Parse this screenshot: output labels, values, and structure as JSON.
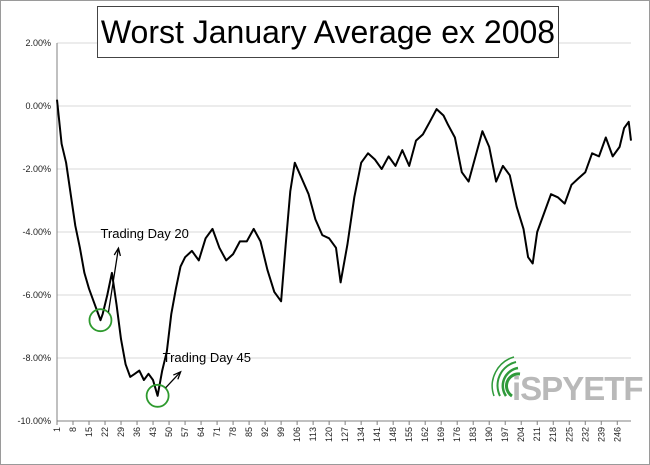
{
  "colors": {
    "line": "#000000",
    "circle": "#2e9a2e",
    "gridline": "#d9d9d9",
    "axis": "#808080",
    "logo_green": "#2f9a3a",
    "logo_grey": "#b9b9b9"
  },
  "logo": {
    "text": "iSPYETF",
    "icon": "radiating-arcs-icon"
  },
  "chart_data": {
    "type": "line",
    "title": "Worst January Average ex 2008",
    "xlabel": "",
    "ylabel": "",
    "xlim": [
      1,
      252
    ],
    "ylim": [
      -10,
      2
    ],
    "ytick_labels": [
      "2.00%",
      "0.00%",
      "-2.00%",
      "-4.00%",
      "-6.00%",
      "-8.00%",
      "-10.00%"
    ],
    "ytick_values": [
      2,
      0,
      -2,
      -4,
      -6,
      -8,
      -10
    ],
    "xtick_labels": [
      "1",
      "8",
      "15",
      "22",
      "29",
      "36",
      "43",
      "50",
      "57",
      "64",
      "71",
      "78",
      "85",
      "92",
      "99",
      "106",
      "113",
      "120",
      "127",
      "134",
      "141",
      "148",
      "155",
      "162",
      "169",
      "176",
      "183",
      "190",
      "197",
      "204",
      "211",
      "218",
      "225",
      "232",
      "239",
      "246"
    ],
    "grid": "horizontal",
    "legend": "none",
    "series": [
      {
        "x": [
          1,
          3,
          5,
          7,
          9,
          11,
          13,
          15,
          17,
          19,
          20,
          21,
          23,
          25,
          27,
          29,
          31,
          33,
          35,
          37,
          39,
          41,
          43,
          45,
          47,
          49,
          51,
          53,
          55,
          57,
          60,
          63,
          66,
          69,
          72,
          75,
          78,
          81,
          84,
          87,
          90,
          93,
          96,
          99,
          101,
          103,
          105,
          108,
          111,
          114,
          117,
          120,
          123,
          125,
          128,
          131,
          134,
          137,
          140,
          143,
          146,
          149,
          152,
          155,
          158,
          161,
          164,
          167,
          170,
          172,
          175,
          178,
          181,
          184,
          187,
          190,
          193,
          196,
          199,
          202,
          205,
          207,
          209,
          211,
          214,
          217,
          220,
          223,
          226,
          229,
          232,
          235,
          238,
          241,
          244,
          247,
          249,
          251,
          252
        ],
        "y": [
          0.2,
          -1.2,
          -1.8,
          -2.8,
          -3.8,
          -4.5,
          -5.3,
          -5.8,
          -6.2,
          -6.6,
          -6.8,
          -6.6,
          -6.0,
          -5.3,
          -6.3,
          -7.4,
          -8.2,
          -8.6,
          -8.5,
          -8.4,
          -8.7,
          -8.5,
          -8.7,
          -9.2,
          -8.4,
          -7.8,
          -6.6,
          -5.8,
          -5.1,
          -4.8,
          -4.6,
          -4.9,
          -4.2,
          -3.9,
          -4.5,
          -4.9,
          -4.7,
          -4.3,
          -4.3,
          -3.9,
          -4.3,
          -5.2,
          -5.9,
          -6.2,
          -4.4,
          -2.7,
          -1.8,
          -2.3,
          -2.8,
          -3.6,
          -4.1,
          -4.2,
          -4.5,
          -5.6,
          -4.4,
          -2.9,
          -1.8,
          -1.5,
          -1.7,
          -2.0,
          -1.6,
          -1.9,
          -1.4,
          -1.9,
          -1.1,
          -0.9,
          -0.5,
          -0.1,
          -0.3,
          -0.6,
          -1.0,
          -2.1,
          -2.4,
          -1.6,
          -0.8,
          -1.3,
          -2.4,
          -1.9,
          -2.2,
          -3.2,
          -3.9,
          -4.8,
          -5.0,
          -4.0,
          -3.4,
          -2.8,
          -2.9,
          -3.1,
          -2.5,
          -2.3,
          -2.1,
          -1.5,
          -1.6,
          -1.0,
          -1.6,
          -1.3,
          -0.7,
          -0.5,
          -1.1
        ]
      }
    ],
    "annotations": [
      {
        "text": "Trading Day 20",
        "x": 20,
        "y": -6.8
      },
      {
        "text": "Trading Day 45",
        "x": 45,
        "y": -9.2
      }
    ]
  }
}
